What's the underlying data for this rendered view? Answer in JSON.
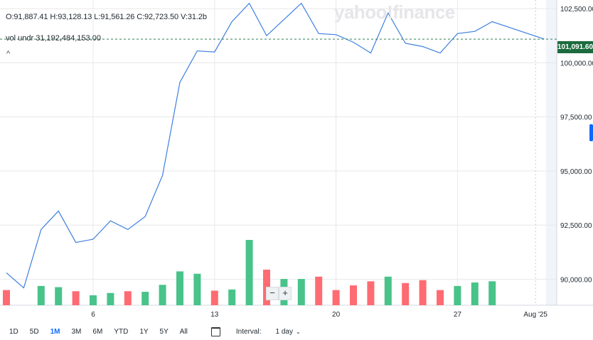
{
  "ohlc": {
    "open": "O:91,887.41",
    "high": "H:93,128.13",
    "low": "L:91,561.26",
    "close": "C:92,723.50",
    "volume": "V:31.2b"
  },
  "volume_legend": {
    "label": "vol undr",
    "value": "31,192,484,153.00"
  },
  "watermark": "yahoo!finance",
  "last_price": "101,091.60",
  "colors": {
    "line": "#3d7fe0",
    "up": "#48c38a",
    "down": "#ff6b72",
    "last_price_bg": "#1c6b3e"
  },
  "zoom": {
    "out": "−",
    "in": "+"
  },
  "footer": {
    "ranges": [
      "1D",
      "5D",
      "1M",
      "3M",
      "6M",
      "YTD",
      "1Y",
      "5Y",
      "All"
    ],
    "active_range": "1M",
    "interval_label": "Interval:",
    "interval_value": "1 day"
  },
  "chart_data": {
    "type": "line",
    "title": "",
    "xlabel": "",
    "ylabel": "",
    "x_ticks": [
      {
        "index": 5,
        "label": "6"
      },
      {
        "index": 12,
        "label": "13"
      },
      {
        "index": 19,
        "label": "20"
      },
      {
        "index": 26,
        "label": "27"
      },
      {
        "index": 30.5,
        "label": "Aug '25"
      }
    ],
    "y_ticks": [
      90000,
      92500,
      95000,
      97500,
      100000,
      102500
    ],
    "y_tick_labels": [
      "90,000.00",
      "92,500.00",
      "95,000.00",
      "97,500.00",
      "100,000.00",
      "102,500.00"
    ],
    "ylim": [
      88800,
      102900
    ],
    "x_range": [
      -0.3,
      31.3
    ],
    "series": [
      {
        "values": [
          90300,
          89600,
          92300,
          93150,
          91700,
          91850,
          92700,
          92300,
          92900,
          94800,
          99100,
          100550,
          100500,
          101900,
          102750,
          101250,
          102000,
          102750,
          101350,
          101300,
          100950,
          100450,
          102300,
          100900,
          100750,
          100450,
          101350,
          101450,
          101900,
          null,
          null,
          101092
        ]
      }
    ],
    "volume": {
      "values": [
        2.6,
        null,
        3.3,
        3.1,
        2.4,
        1.7,
        2.1,
        2.4,
        2.3,
        3.5,
        5.8,
        5.4,
        2.5,
        2.7,
        11.2,
        6.1,
        4.5,
        4.5,
        4.9,
        2.6,
        3.4,
        4.1,
        4.9,
        3.8,
        4.3,
        2.6,
        3.3,
        3.9,
        4.1
      ],
      "colors": [
        "down",
        "down",
        "up",
        "up",
        "down",
        "up",
        "up",
        "down",
        "up",
        "up",
        "up",
        "up",
        "down",
        "up",
        "up",
        "down",
        "up",
        "up",
        "down",
        "down",
        "down",
        "down",
        "up",
        "down",
        "down",
        "down",
        "up",
        "up",
        "up"
      ],
      "max": 14
    },
    "last_value": 101091.6,
    "grid": true
  }
}
